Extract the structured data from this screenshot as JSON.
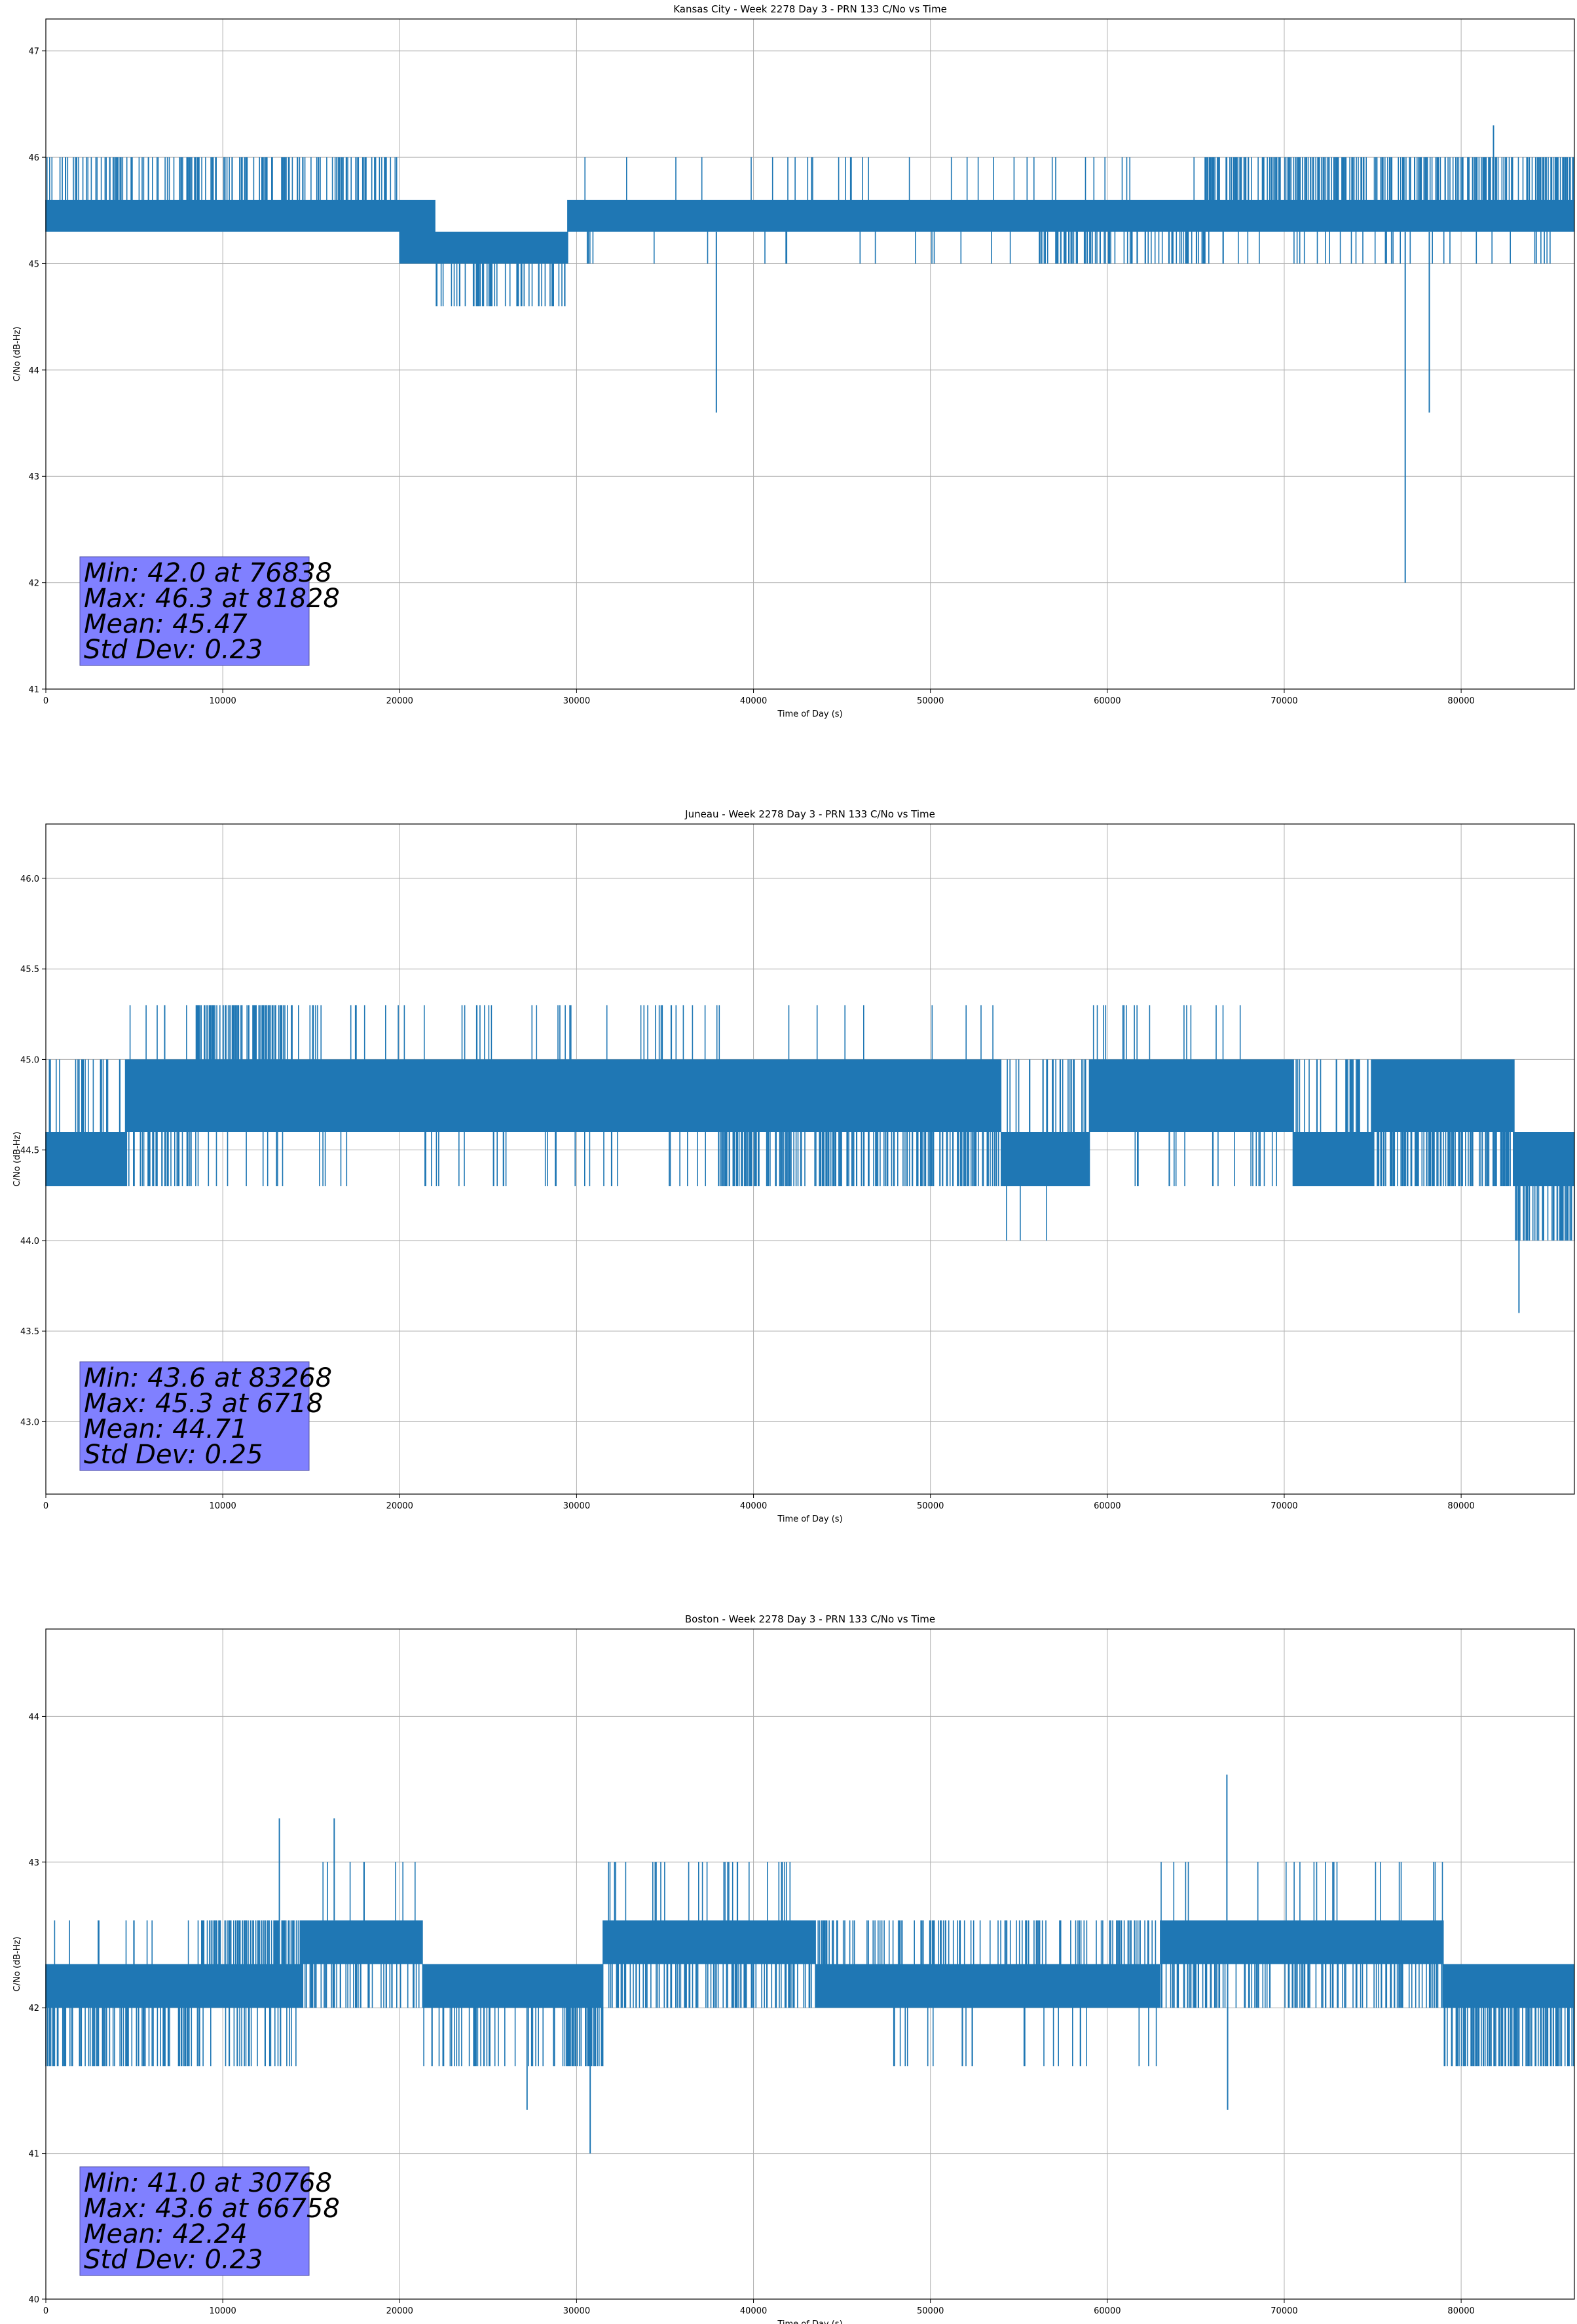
{
  "chart_data": [
    {
      "type": "line",
      "title": "Kansas City - Week 2278 Day 3 - PRN 133 C/No vs Time",
      "xlabel": "Time of Day (s)",
      "ylabel": "C/No (dB-Hz)",
      "xlim": [
        0,
        86400
      ],
      "ylim": [
        41,
        47.3
      ],
      "xticks": [
        0,
        10000,
        20000,
        30000,
        40000,
        50000,
        60000,
        70000,
        80000
      ],
      "xtick_labels": [
        "0",
        "10000",
        "20000",
        "30000",
        "40000",
        "50000",
        "60000",
        "70000",
        "80000"
      ],
      "yticks": [
        41,
        42,
        43,
        44,
        45,
        46,
        47
      ],
      "ytick_labels": [
        "41",
        "42",
        "43",
        "44",
        "45",
        "46",
        "47"
      ],
      "grid": true,
      "color": "#1f77b4",
      "stats_box_color": "#8080ff",
      "stats": [
        "Min: 42.0 at 76838",
        "Max: 46.3 at 81828",
        "Mean: 45.47",
        "Std Dev: 0.23"
      ],
      "band_segments": [
        {
          "x": [
            0,
            20000
          ],
          "low": 45.3,
          "high": 45.6,
          "up": 46.0,
          "down": 45.0,
          "up_rate": 0.35,
          "down_rate": 0.0
        },
        {
          "x": [
            20000,
            22000
          ],
          "low": 45.0,
          "high": 45.6,
          "up": 45.6,
          "down": 45.0,
          "up_rate": 0.1,
          "down_rate": 0.1
        },
        {
          "x": [
            22000,
            29500
          ],
          "low": 45.0,
          "high": 45.3,
          "up": 45.3,
          "down": 44.6,
          "up_rate": 0.0,
          "down_rate": 0.3
        },
        {
          "x": [
            29500,
            56000
          ],
          "low": 45.3,
          "high": 45.6,
          "up": 46.0,
          "down": 45.0,
          "up_rate": 0.04,
          "down_rate": 0.02
        },
        {
          "x": [
            56000,
            65500
          ],
          "low": 45.3,
          "high": 45.6,
          "up": 46.0,
          "down": 45.0,
          "up_rate": 0.02,
          "down_rate": 0.35
        },
        {
          "x": [
            65500,
            86400
          ],
          "low": 45.3,
          "high": 45.6,
          "up": 46.0,
          "down": 45.0,
          "up_rate": 0.5,
          "down_rate": 0.08
        }
      ],
      "spikes": [
        {
          "x": 37900,
          "y": 43.6
        },
        {
          "x": 76838,
          "y": 42.0
        },
        {
          "x": 78200,
          "y": 43.6
        },
        {
          "x": 81828,
          "y": 46.3
        }
      ]
    },
    {
      "type": "line",
      "title": "Juneau - Week 2278 Day 3 - PRN 133 C/No vs Time",
      "xlabel": "Time of Day (s)",
      "ylabel": "C/No (dB-Hz)",
      "xlim": [
        0,
        86400
      ],
      "ylim": [
        42.6,
        46.3
      ],
      "xticks": [
        0,
        10000,
        20000,
        30000,
        40000,
        50000,
        60000,
        70000,
        80000
      ],
      "xtick_labels": [
        "0",
        "10000",
        "20000",
        "30000",
        "40000",
        "50000",
        "60000",
        "70000",
        "80000"
      ],
      "yticks": [
        43.0,
        43.5,
        44.0,
        44.5,
        45.0,
        45.5,
        46.0
      ],
      "ytick_labels": [
        "43.0",
        "43.5",
        "44.0",
        "44.5",
        "45.0",
        "45.5",
        "46.0"
      ],
      "grid": true,
      "color": "#1f77b4",
      "stats_box_color": "#8080ff",
      "stats": [
        "Min: 43.6 at 83268",
        "Max: 45.3 at 6718",
        "Mean: 44.71",
        "Std Dev: 0.25"
      ],
      "band_segments": [
        {
          "x": [
            0,
            4500
          ],
          "low": 44.3,
          "high": 44.6,
          "up": 45.0,
          "down": 44.3,
          "up_rate": 0.2,
          "down_rate": 0.0
        },
        {
          "x": [
            4500,
            8500
          ],
          "low": 44.6,
          "high": 45.0,
          "up": 45.3,
          "down": 44.3,
          "up_rate": 0.03,
          "down_rate": 0.4
        },
        {
          "x": [
            8500,
            14000
          ],
          "low": 44.6,
          "high": 45.0,
          "up": 45.3,
          "down": 44.3,
          "up_rate": 0.6,
          "down_rate": 0.05
        },
        {
          "x": [
            14000,
            38000
          ],
          "low": 44.6,
          "high": 45.0,
          "up": 45.3,
          "down": 44.3,
          "up_rate": 0.06,
          "down_rate": 0.05
        },
        {
          "x": [
            38000,
            54000
          ],
          "low": 44.6,
          "high": 45.0,
          "up": 45.3,
          "down": 44.3,
          "up_rate": 0.02,
          "down_rate": 0.45
        },
        {
          "x": [
            54000,
            59000
          ],
          "low": 44.3,
          "high": 44.6,
          "up": 45.0,
          "down": 44.0,
          "up_rate": 0.2,
          "down_rate": 0.02
        },
        {
          "x": [
            59000,
            70500
          ],
          "low": 44.6,
          "high": 45.0,
          "up": 45.3,
          "down": 44.3,
          "up_rate": 0.05,
          "down_rate": 0.08
        },
        {
          "x": [
            70500,
            75000
          ],
          "low": 44.3,
          "high": 44.6,
          "up": 45.0,
          "down": 44.0,
          "up_rate": 0.3,
          "down_rate": 0.02
        },
        {
          "x": [
            75000,
            83000
          ],
          "low": 44.6,
          "high": 45.0,
          "up": 45.0,
          "down": 44.3,
          "up_rate": 0.0,
          "down_rate": 0.55
        },
        {
          "x": [
            83000,
            86400
          ],
          "low": 44.3,
          "high": 44.6,
          "up": 44.6,
          "down": 44.0,
          "up_rate": 0.0,
          "down_rate": 0.4
        }
      ],
      "spikes": [
        {
          "x": 83268,
          "y": 43.6
        },
        {
          "x": 6718,
          "y": 45.3
        }
      ]
    },
    {
      "type": "line",
      "title": "Boston - Week 2278 Day 3 - PRN 133 C/No vs Time",
      "xlabel": "Time of Day (s)",
      "ylabel": "C/No (dB-Hz)",
      "xlim": [
        0,
        86400
      ],
      "ylim": [
        40,
        44.6
      ],
      "xticks": [
        0,
        10000,
        20000,
        30000,
        40000,
        50000,
        60000,
        70000,
        80000
      ],
      "xtick_labels": [
        "0",
        "10000",
        "20000",
        "30000",
        "40000",
        "50000",
        "60000",
        "70000",
        "80000"
      ],
      "yticks": [
        40,
        41,
        42,
        43,
        44
      ],
      "ytick_labels": [
        "40",
        "41",
        "42",
        "43",
        "44"
      ],
      "grid": true,
      "color": "#1f77b4",
      "stats_box_color": "#8080ff",
      "stats": [
        "Min: 41.0 at 30768",
        "Max: 43.6 at 66758",
        "Mean: 42.24",
        "Std Dev: 0.23"
      ],
      "band_segments": [
        {
          "x": [
            0,
            8500
          ],
          "low": 42.0,
          "high": 42.3,
          "up": 42.6,
          "down": 41.6,
          "up_rate": 0.05,
          "down_rate": 0.35
        },
        {
          "x": [
            8500,
            14500
          ],
          "low": 42.0,
          "high": 42.3,
          "up": 42.6,
          "down": 41.6,
          "up_rate": 0.55,
          "down_rate": 0.2
        },
        {
          "x": [
            14500,
            21300
          ],
          "low": 42.3,
          "high": 42.6,
          "up": 43.0,
          "down": 42.0,
          "up_rate": 0.05,
          "down_rate": 0.35
        },
        {
          "x": [
            21300,
            29500
          ],
          "low": 42.0,
          "high": 42.3,
          "up": 42.6,
          "down": 41.6,
          "up_rate": 0.0,
          "down_rate": 0.25
        },
        {
          "x": [
            29500,
            31500
          ],
          "low": 42.0,
          "high": 42.3,
          "up": 42.6,
          "down": 41.6,
          "up_rate": 0.0,
          "down_rate": 0.7
        },
        {
          "x": [
            31500,
            43500
          ],
          "low": 42.3,
          "high": 42.6,
          "up": 43.0,
          "down": 42.0,
          "up_rate": 0.05,
          "down_rate": 0.35
        },
        {
          "x": [
            43500,
            63000
          ],
          "low": 42.0,
          "high": 42.3,
          "up": 42.6,
          "down": 41.6,
          "up_rate": 0.25,
          "down_rate": 0.04
        },
        {
          "x": [
            63000,
            79000
          ],
          "low": 42.3,
          "high": 42.6,
          "up": 43.0,
          "down": 42.0,
          "up_rate": 0.04,
          "down_rate": 0.3
        },
        {
          "x": [
            79000,
            86400
          ],
          "low": 42.0,
          "high": 42.3,
          "up": 42.3,
          "down": 41.6,
          "up_rate": 0.0,
          "down_rate": 0.6
        }
      ],
      "spikes": [
        {
          "x": 13200,
          "y": 43.3
        },
        {
          "x": 16300,
          "y": 43.3
        },
        {
          "x": 27200,
          "y": 41.3
        },
        {
          "x": 30768,
          "y": 41.0
        },
        {
          "x": 66758,
          "y": 43.6
        },
        {
          "x": 66800,
          "y": 41.3
        }
      ]
    }
  ]
}
